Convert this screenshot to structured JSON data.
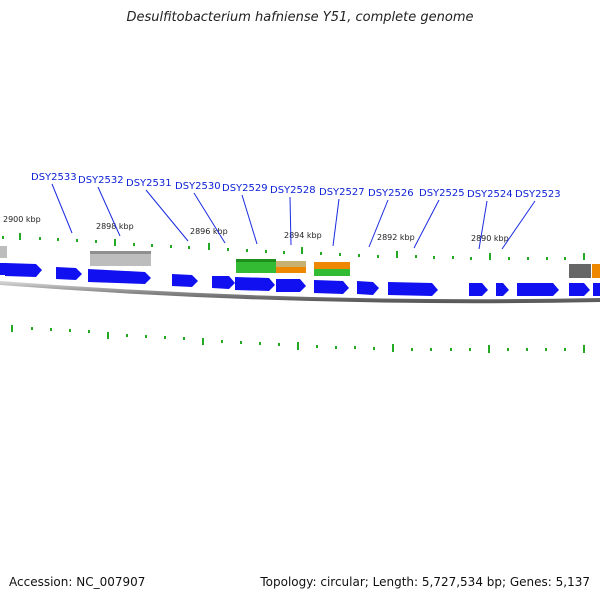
{
  "title": "Desulfitobacterium hafniense Y51, complete genome",
  "footer": {
    "accession": "Accession: NC_007907",
    "summary": "Topology: circular; Length: 5,727,534 bp; Genes: 5,137"
  },
  "colors": {
    "gene_label": "#0b1fd6",
    "leader_line": "#1a2be0",
    "tick": "#22aa22",
    "backbone": "#888888",
    "blue_gene": "#1010f0",
    "gray_gene": "#bdbdbd",
    "dark_gray_gene": "#666666",
    "green_gene": "#33bb33",
    "orange_gene": "#ee8800"
  },
  "kbp_labels": [
    "2900 kbp",
    "2898 kbp",
    "2896 kbp",
    "2894 kbp",
    "2892 kbp",
    "2890 kbp"
  ],
  "gene_labels": [
    "DSY2533",
    "DSY2532",
    "DSY2531",
    "DSY2530",
    "DSY2529",
    "DSY2528",
    "DSY2527",
    "DSY2526",
    "DSY2525",
    "DSY2524",
    "DSY2523"
  ]
}
